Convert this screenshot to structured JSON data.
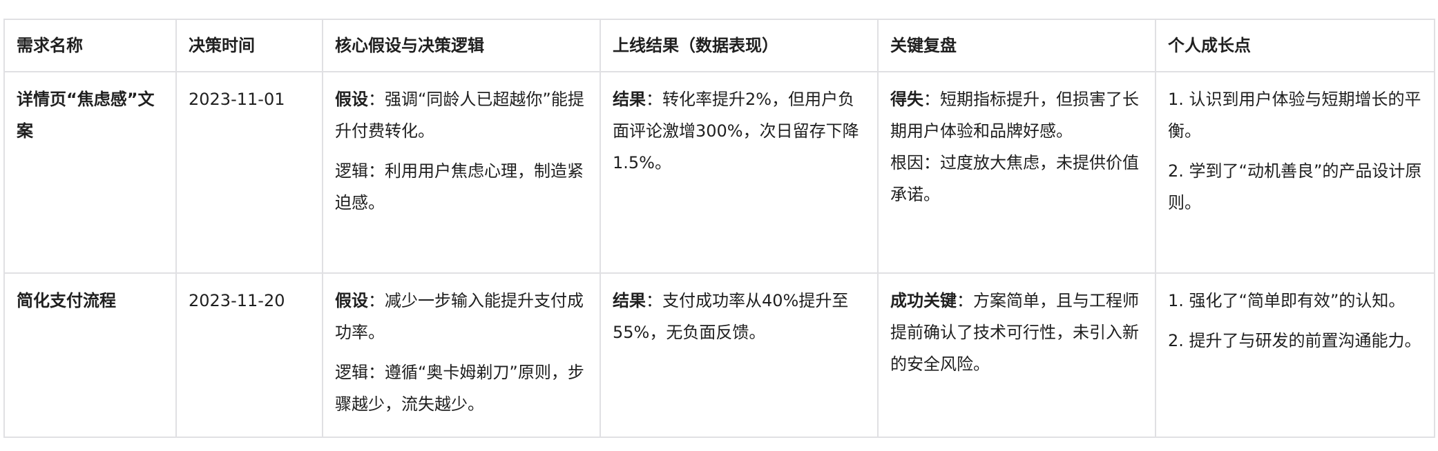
{
  "headers": [
    "需求名称",
    "决策时间",
    "核心假设与决策逻辑",
    "上线结果（数据表现）",
    "关键复盘",
    "个人成长点"
  ],
  "rows": [
    {
      "name": "详情页“焦虑感”文案",
      "date": "2023-11-01",
      "hypothesis": {
        "label": "假设",
        "text": "：强调“同龄人已超越你”能提升付费转化。"
      },
      "logic": "逻辑：利用用户焦虑心理，制造紧迫感。",
      "result": {
        "label": "结果",
        "text": "：转化率提升2%，但用户负面评论激增300%，次日留存下降1.5%。"
      },
      "review": {
        "label": "得失",
        "text": "：短期指标提升，但损害了长期用户体验和品牌好感。"
      },
      "review_extra": "根因：过度放大焦虑，未提供价值承诺。",
      "growth": [
        "1. 认识到用户体验与短期增长的平衡。",
        "2. 学到了“动机善良”的产品设计原则。"
      ]
    },
    {
      "name": "简化支付流程",
      "date": "2023-11-20",
      "hypothesis": {
        "label": "假设",
        "text": "：减少一步输入能提升支付成功率。"
      },
      "logic": "逻辑：遵循“奥卡姆剃刀”原则，步骤越少，流失越少。",
      "result": {
        "label": "结果",
        "text": "：支付成功率从40%提升至55%，无负面反馈。"
      },
      "review": {
        "label": "成功关键",
        "text": "：方案简单，且与工程师提前确认了技术可行性，未引入新的安全风险。"
      },
      "growth": [
        "1. 强化了“简单即有效”的认知。",
        "2. 提升了与研发的前置沟通能力。"
      ]
    }
  ]
}
